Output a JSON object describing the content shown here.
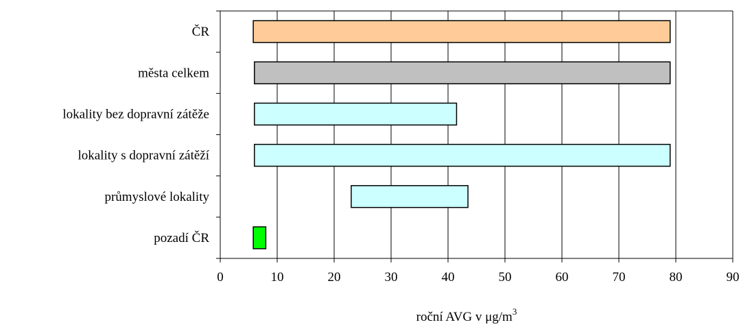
{
  "chart_data": {
    "type": "bar",
    "orientation": "horizontal-range",
    "title": "",
    "xlabel": "roční AVG v μg/m",
    "xlabel_superscript": "3",
    "ylabel": "",
    "xlim": [
      0,
      90
    ],
    "xticks": [
      "0",
      "10",
      "20",
      "30",
      "40",
      "50",
      "60",
      "70",
      "80",
      "90"
    ],
    "grid": "vertical",
    "legend": "none",
    "categories": [
      "ČR",
      "města celkem",
      "lokality bez dopravní zátěže",
      "lokality s dopravní zátěží",
      "průmyslové lokality",
      "pozadí ČR"
    ],
    "ranges": [
      {
        "min": 5.8,
        "max": 79.0,
        "color": "#FFCC99"
      },
      {
        "min": 6.0,
        "max": 79.0,
        "color": "#C0C0C0"
      },
      {
        "min": 6.0,
        "max": 41.5,
        "color": "#CCFFFF"
      },
      {
        "min": 6.0,
        "max": 79.0,
        "color": "#CCFFFF"
      },
      {
        "min": 23.0,
        "max": 43.5,
        "color": "#CCFFFF"
      },
      {
        "min": 5.8,
        "max": 8.0,
        "color": "#00FF00"
      }
    ]
  }
}
